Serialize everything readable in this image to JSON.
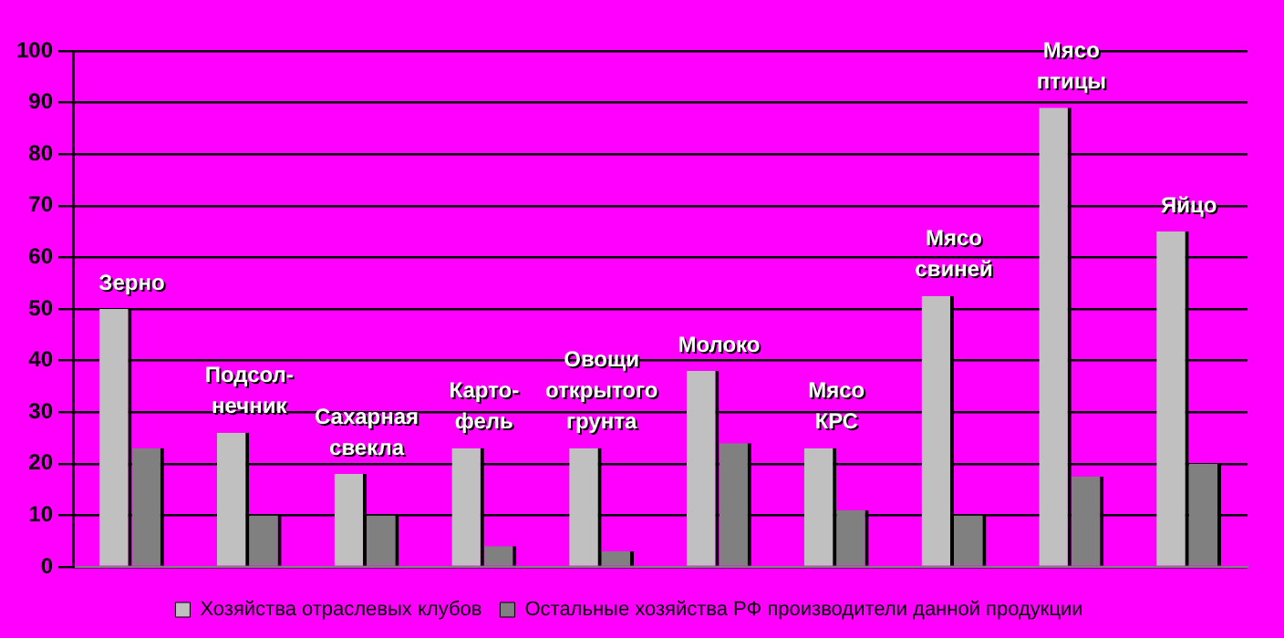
{
  "chart_data": {
    "type": "bar",
    "categories": [
      "Зерно",
      "Подсол-\nнечник",
      "Сахарная\nсвекла",
      "Карто-\nфель",
      "Овощи\nоткрытого\nгрунта",
      "Молоко",
      "Мясо\nКРС",
      "Мясо\nсвиней",
      "Мясо\nптицы",
      "Яйцо"
    ],
    "series": [
      {
        "name": "Хозяйства отраслевых клубов",
        "color": "#c0c0c0",
        "values": [
          50,
          26,
          18,
          23,
          23,
          38,
          23,
          52.5,
          89,
          65
        ]
      },
      {
        "name": "Остальные хозяйства РФ производители данной продукции",
        "color": "#808080",
        "values": [
          23,
          10,
          10,
          4,
          3,
          24,
          11,
          10,
          17.5,
          20
        ]
      }
    ],
    "ylim": [
      0,
      100
    ],
    "yticks": [
      0,
      10,
      20,
      30,
      40,
      50,
      60,
      70,
      80,
      90,
      100
    ],
    "grid": "y",
    "legend": "bottom"
  }
}
